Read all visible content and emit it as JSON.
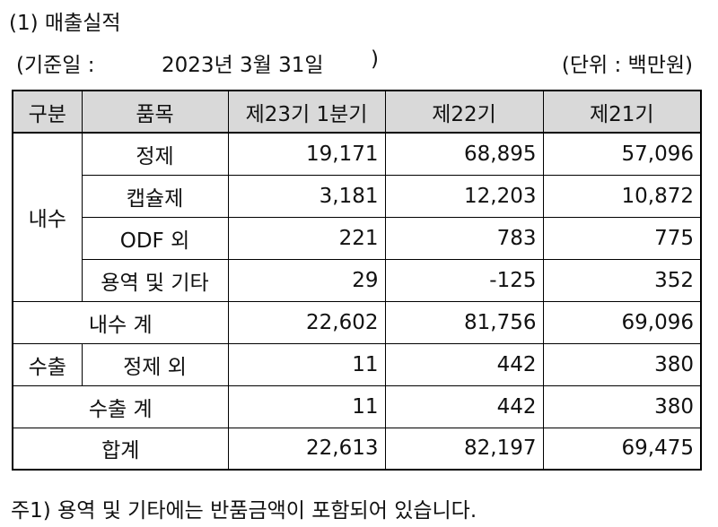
{
  "title": "(1) 매출실적",
  "basis": {
    "open": "(기준일 :",
    "date": "2023년 3월 31일",
    "close": ")"
  },
  "unit": "(단위 : 백만원)",
  "table": {
    "headers": [
      "구분",
      "품목",
      "제23기 1분기",
      "제22기",
      "제21기"
    ],
    "domestic_label": "내수",
    "domestic_rows": [
      {
        "item": "정제",
        "q1": "19,171",
        "p22": "68,895",
        "p21": "57,096"
      },
      {
        "item": "캡슐제",
        "q1": "3,181",
        "p22": "12,203",
        "p21": "10,872"
      },
      {
        "item": "ODF 외",
        "q1": "221",
        "p22": "783",
        "p21": "775"
      },
      {
        "item": "용역 및 기타",
        "q1": "29",
        "p22": "-125",
        "p21": "352"
      }
    ],
    "domestic_total": {
      "label": "내수 계",
      "q1": "22,602",
      "p22": "81,756",
      "p21": "69,096"
    },
    "export_label": "수출",
    "export_row": {
      "item": "정제 외",
      "q1": "11",
      "p22": "442",
      "p21": "380"
    },
    "export_total": {
      "label": "수출 계",
      "q1": "11",
      "p22": "442",
      "p21": "380"
    },
    "grand_total": {
      "label": "합계",
      "q1": "22,613",
      "p22": "82,197",
      "p21": "69,475"
    }
  },
  "note": "주1) 용역 및 기타에는 반품금액이 포함되어 있습니다."
}
